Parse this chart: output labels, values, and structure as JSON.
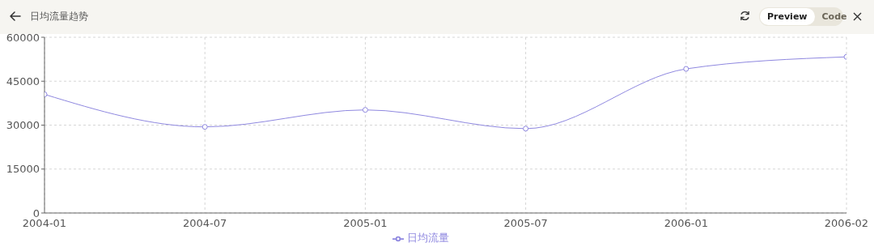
{
  "chart_data": {
    "type": "line",
    "title": "日均流量趋势",
    "annotations": [
      "Preview",
      "Code"
    ],
    "categories": [
      "2004-01",
      "2004-07",
      "2005-01",
      "2005-07",
      "2006-01",
      "2006-02"
    ],
    "series": [
      {
        "name": "日均流量",
        "color": "#8f88e0",
        "values": [
          40500,
          29400,
          35200,
          28800,
          49200,
          53300
        ]
      }
    ],
    "ylim": [
      0,
      60000
    ],
    "yticks": [
      0,
      15000,
      30000,
      45000,
      60000
    ],
    "grid": true,
    "legend": "bottom",
    "marker": "circle",
    "line_style": "solid"
  }
}
